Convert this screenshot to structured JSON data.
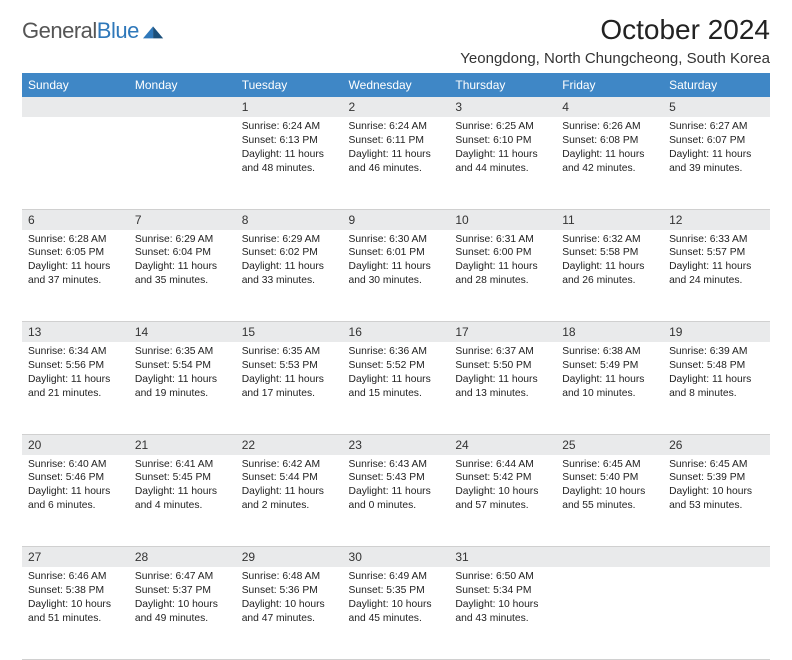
{
  "logo": {
    "general": "General",
    "blue": "Blue"
  },
  "title": "October 2024",
  "subtitle": "Yeongdong, North Chungcheong, South Korea",
  "colors": {
    "header_bg": "#3f87c6",
    "header_fg": "#ffffff",
    "daynum_bg": "#e9eaeb",
    "border": "#d0d0d0",
    "text": "#222222",
    "logo_gray": "#555555",
    "logo_blue": "#2f78ba"
  },
  "dayNames": [
    "Sunday",
    "Monday",
    "Tuesday",
    "Wednesday",
    "Thursday",
    "Friday",
    "Saturday"
  ],
  "weeks": [
    [
      null,
      null,
      {
        "num": "1",
        "sunrise": "6:24 AM",
        "sunset": "6:13 PM",
        "daylight": "11 hours and 48 minutes."
      },
      {
        "num": "2",
        "sunrise": "6:24 AM",
        "sunset": "6:11 PM",
        "daylight": "11 hours and 46 minutes."
      },
      {
        "num": "3",
        "sunrise": "6:25 AM",
        "sunset": "6:10 PM",
        "daylight": "11 hours and 44 minutes."
      },
      {
        "num": "4",
        "sunrise": "6:26 AM",
        "sunset": "6:08 PM",
        "daylight": "11 hours and 42 minutes."
      },
      {
        "num": "5",
        "sunrise": "6:27 AM",
        "sunset": "6:07 PM",
        "daylight": "11 hours and 39 minutes."
      }
    ],
    [
      {
        "num": "6",
        "sunrise": "6:28 AM",
        "sunset": "6:05 PM",
        "daylight": "11 hours and 37 minutes."
      },
      {
        "num": "7",
        "sunrise": "6:29 AM",
        "sunset": "6:04 PM",
        "daylight": "11 hours and 35 minutes."
      },
      {
        "num": "8",
        "sunrise": "6:29 AM",
        "sunset": "6:02 PM",
        "daylight": "11 hours and 33 minutes."
      },
      {
        "num": "9",
        "sunrise": "6:30 AM",
        "sunset": "6:01 PM",
        "daylight": "11 hours and 30 minutes."
      },
      {
        "num": "10",
        "sunrise": "6:31 AM",
        "sunset": "6:00 PM",
        "daylight": "11 hours and 28 minutes."
      },
      {
        "num": "11",
        "sunrise": "6:32 AM",
        "sunset": "5:58 PM",
        "daylight": "11 hours and 26 minutes."
      },
      {
        "num": "12",
        "sunrise": "6:33 AM",
        "sunset": "5:57 PM",
        "daylight": "11 hours and 24 minutes."
      }
    ],
    [
      {
        "num": "13",
        "sunrise": "6:34 AM",
        "sunset": "5:56 PM",
        "daylight": "11 hours and 21 minutes."
      },
      {
        "num": "14",
        "sunrise": "6:35 AM",
        "sunset": "5:54 PM",
        "daylight": "11 hours and 19 minutes."
      },
      {
        "num": "15",
        "sunrise": "6:35 AM",
        "sunset": "5:53 PM",
        "daylight": "11 hours and 17 minutes."
      },
      {
        "num": "16",
        "sunrise": "6:36 AM",
        "sunset": "5:52 PM",
        "daylight": "11 hours and 15 minutes."
      },
      {
        "num": "17",
        "sunrise": "6:37 AM",
        "sunset": "5:50 PM",
        "daylight": "11 hours and 13 minutes."
      },
      {
        "num": "18",
        "sunrise": "6:38 AM",
        "sunset": "5:49 PM",
        "daylight": "11 hours and 10 minutes."
      },
      {
        "num": "19",
        "sunrise": "6:39 AM",
        "sunset": "5:48 PM",
        "daylight": "11 hours and 8 minutes."
      }
    ],
    [
      {
        "num": "20",
        "sunrise": "6:40 AM",
        "sunset": "5:46 PM",
        "daylight": "11 hours and 6 minutes."
      },
      {
        "num": "21",
        "sunrise": "6:41 AM",
        "sunset": "5:45 PM",
        "daylight": "11 hours and 4 minutes."
      },
      {
        "num": "22",
        "sunrise": "6:42 AM",
        "sunset": "5:44 PM",
        "daylight": "11 hours and 2 minutes."
      },
      {
        "num": "23",
        "sunrise": "6:43 AM",
        "sunset": "5:43 PM",
        "daylight": "11 hours and 0 minutes."
      },
      {
        "num": "24",
        "sunrise": "6:44 AM",
        "sunset": "5:42 PM",
        "daylight": "10 hours and 57 minutes."
      },
      {
        "num": "25",
        "sunrise": "6:45 AM",
        "sunset": "5:40 PM",
        "daylight": "10 hours and 55 minutes."
      },
      {
        "num": "26",
        "sunrise": "6:45 AM",
        "sunset": "5:39 PM",
        "daylight": "10 hours and 53 minutes."
      }
    ],
    [
      {
        "num": "27",
        "sunrise": "6:46 AM",
        "sunset": "5:38 PM",
        "daylight": "10 hours and 51 minutes."
      },
      {
        "num": "28",
        "sunrise": "6:47 AM",
        "sunset": "5:37 PM",
        "daylight": "10 hours and 49 minutes."
      },
      {
        "num": "29",
        "sunrise": "6:48 AM",
        "sunset": "5:36 PM",
        "daylight": "10 hours and 47 minutes."
      },
      {
        "num": "30",
        "sunrise": "6:49 AM",
        "sunset": "5:35 PM",
        "daylight": "10 hours and 45 minutes."
      },
      {
        "num": "31",
        "sunrise": "6:50 AM",
        "sunset": "5:34 PM",
        "daylight": "10 hours and 43 minutes."
      },
      null,
      null
    ]
  ],
  "labels": {
    "sunrise": "Sunrise:",
    "sunset": "Sunset:",
    "daylight": "Daylight:"
  }
}
